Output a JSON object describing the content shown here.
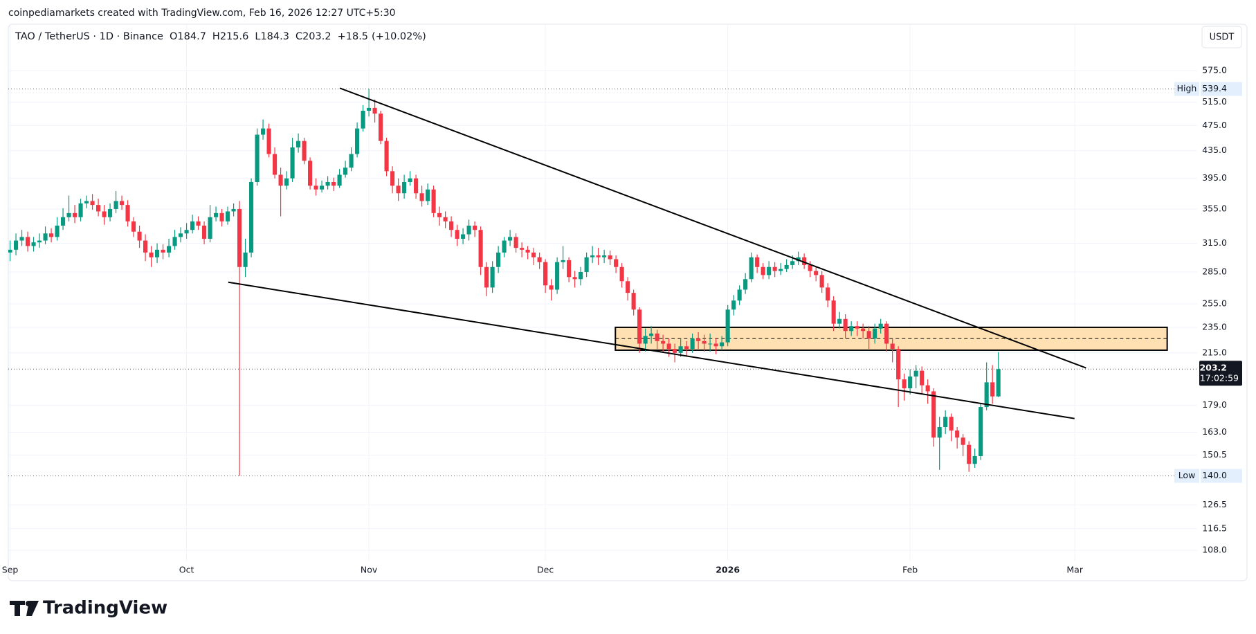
{
  "header": {
    "attribution": "coinpediamarkets created with TradingView.com, Feb 16, 2026 12:27 UTC+5:30"
  },
  "chart_data": {
    "type": "candlestick",
    "title": "TAO / TetherUS · 1D · Binance",
    "ohlc_labels": [
      "O",
      "H",
      "L",
      "C"
    ],
    "change": "+18.5",
    "change_pct": "(+10.02%)",
    "currency": "USDT",
    "open": [
      305,
      308,
      318,
      322,
      312,
      316,
      318,
      326,
      322,
      335,
      345,
      350,
      345,
      362,
      365,
      360,
      352,
      345,
      355,
      365,
      360,
      340,
      328,
      318,
      305,
      300,
      308,
      305,
      312,
      322,
      326,
      330,
      340,
      335,
      320,
      345,
      350,
      340,
      352,
      355,
      290,
      305,
      390,
      460,
      470,
      430,
      400,
      385,
      395,
      440,
      450,
      420,
      385,
      380,
      385,
      390,
      385,
      400,
      410,
      430,
      470,
      500,
      505,
      495,
      450,
      405,
      385,
      375,
      390,
      395,
      375,
      365,
      380,
      350,
      345,
      340,
      330,
      320,
      325,
      335,
      330,
      290,
      270,
      290,
      305,
      318,
      322,
      310,
      308,
      305,
      300,
      295,
      272,
      268,
      295,
      297,
      280,
      278,
      285,
      300,
      302,
      300,
      302,
      298,
      290,
      276,
      265,
      250,
      222,
      228,
      230,
      224,
      222,
      218,
      215,
      220,
      218,
      226,
      224,
      222,
      222,
      220,
      223,
      250,
      258,
      268,
      278,
      300,
      290,
      282,
      290,
      286,
      288,
      292,
      296,
      300,
      292,
      286,
      282,
      270,
      258,
      238,
      242,
      232,
      236,
      234,
      232,
      226,
      234,
      238,
      222,
      218,
      196,
      190,
      198,
      202,
      192,
      188,
      160,
      166,
      172,
      164,
      160,
      156,
      146,
      150,
      178,
      194,
      184.7
    ],
    "high": [
      318,
      326,
      330,
      328,
      322,
      326,
      334,
      332,
      345,
      356,
      372,
      360,
      368,
      372,
      374,
      368,
      360,
      362,
      378,
      372,
      366,
      345,
      335,
      325,
      312,
      315,
      314,
      320,
      330,
      333,
      338,
      348,
      346,
      340,
      360,
      358,
      355,
      358,
      362,
      365,
      320,
      395,
      470,
      485,
      478,
      440,
      410,
      405,
      455,
      462,
      455,
      425,
      395,
      392,
      398,
      396,
      408,
      420,
      440,
      480,
      510,
      539.4,
      520,
      500,
      455,
      412,
      395,
      400,
      405,
      400,
      385,
      388,
      385,
      358,
      352,
      346,
      336,
      332,
      342,
      340,
      334,
      295,
      296,
      312,
      322,
      330,
      326,
      316,
      312,
      310,
      305,
      298,
      278,
      300,
      312,
      300,
      286,
      290,
      305,
      312,
      310,
      308,
      307,
      302,
      294,
      280,
      268,
      252,
      234,
      236,
      233,
      229,
      226,
      222,
      226,
      224,
      230,
      231,
      229,
      230,
      226,
      228,
      254,
      263,
      272,
      284,
      305,
      303,
      294,
      296,
      295,
      294,
      298,
      302,
      306,
      304,
      296,
      290,
      286,
      274,
      262,
      248,
      246,
      240,
      240,
      238,
      236,
      238,
      242,
      240,
      226,
      220,
      200,
      203,
      206,
      205,
      196,
      190,
      172,
      176,
      174,
      166,
      162,
      158,
      154,
      180,
      208,
      206,
      215.6
    ],
    "low": [
      296,
      302,
      312,
      306,
      306,
      310,
      314,
      316,
      318,
      330,
      340,
      338,
      340,
      356,
      354,
      346,
      336,
      340,
      350,
      354,
      334,
      322,
      310,
      296,
      290,
      294,
      298,
      300,
      308,
      316,
      320,
      326,
      330,
      314,
      316,
      340,
      334,
      336,
      346,
      140,
      280,
      300,
      385,
      452,
      425,
      395,
      346,
      380,
      390,
      432,
      415,
      380,
      372,
      376,
      380,
      378,
      382,
      396,
      405,
      425,
      465,
      490,
      480,
      445,
      398,
      375,
      365,
      368,
      385,
      368,
      358,
      360,
      345,
      335,
      332,
      322,
      312,
      314,
      318,
      322,
      282,
      262,
      265,
      284,
      300,
      312,
      305,
      300,
      298,
      292,
      288,
      265,
      258,
      264,
      288,
      275,
      270,
      272,
      280,
      294,
      292,
      294,
      292,
      284,
      270,
      258,
      245,
      215,
      216,
      222,
      218,
      215,
      212,
      208,
      212,
      213,
      215,
      218,
      216,
      216,
      214,
      217,
      220,
      245,
      254,
      264,
      275,
      284,
      278,
      278,
      280,
      282,
      285,
      288,
      292,
      288,
      280,
      276,
      265,
      252,
      232,
      234,
      226,
      228,
      228,
      226,
      218,
      222,
      230,
      216,
      208,
      178,
      182,
      186,
      190,
      186,
      180,
      155,
      143,
      162,
      158,
      154,
      150,
      142,
      144,
      148,
      176,
      180,
      184.3
    ],
    "close": [
      308,
      318,
      322,
      312,
      316,
      318,
      326,
      322,
      335,
      345,
      350,
      345,
      362,
      365,
      360,
      352,
      345,
      355,
      365,
      360,
      340,
      328,
      318,
      305,
      300,
      308,
      305,
      312,
      322,
      326,
      330,
      340,
      335,
      320,
      345,
      350,
      340,
      352,
      355,
      290,
      305,
      390,
      460,
      470,
      430,
      400,
      385,
      395,
      440,
      450,
      420,
      385,
      380,
      385,
      390,
      385,
      400,
      410,
      430,
      470,
      500,
      505,
      495,
      450,
      405,
      385,
      375,
      390,
      395,
      375,
      365,
      380,
      350,
      345,
      340,
      330,
      320,
      325,
      335,
      330,
      290,
      270,
      290,
      305,
      318,
      322,
      310,
      308,
      305,
      300,
      295,
      272,
      268,
      295,
      297,
      280,
      278,
      285,
      300,
      302,
      300,
      302,
      298,
      290,
      276,
      265,
      250,
      222,
      228,
      230,
      224,
      222,
      218,
      215,
      220,
      218,
      226,
      224,
      222,
      222,
      220,
      223,
      250,
      258,
      268,
      278,
      300,
      290,
      282,
      290,
      286,
      288,
      292,
      296,
      300,
      292,
      286,
      282,
      270,
      258,
      238,
      242,
      232,
      236,
      234,
      232,
      226,
      234,
      238,
      222,
      218,
      196,
      190,
      198,
      202,
      192,
      188,
      160,
      166,
      172,
      164,
      160,
      156,
      146,
      150,
      178,
      194,
      184.7,
      203.2
    ],
    "up_color": "#089981",
    "down_color": "#f23645",
    "xlim": [
      -0.3,
      201.8
    ],
    "xticks": [
      {
        "value": 0,
        "label": "Sep"
      },
      {
        "value": 30,
        "label": "Oct"
      },
      {
        "value": 61,
        "label": "Nov"
      },
      {
        "value": 91,
        "label": "Dec"
      },
      {
        "value": 122,
        "label": "2026"
      },
      {
        "value": 153,
        "label": "Feb"
      },
      {
        "value": 181,
        "label": "Mar"
      }
    ],
    "ylim": [
      104.2,
      676
    ],
    "log_scale": true,
    "grid": true,
    "yticks": [
      {
        "value": 575,
        "label": "575.0"
      },
      {
        "value": 515,
        "label": "515.0"
      },
      {
        "value": 475,
        "label": "475.0"
      },
      {
        "value": 435,
        "label": "435.0"
      },
      {
        "value": 395,
        "label": "395.0"
      },
      {
        "value": 355,
        "label": "355.0"
      },
      {
        "value": 315,
        "label": "315.0"
      },
      {
        "value": 285,
        "label": "285.0"
      },
      {
        "value": 255,
        "label": "255.0"
      },
      {
        "value": 235,
        "label": "235.0"
      },
      {
        "value": 215,
        "label": "215.0"
      },
      {
        "value": 179,
        "label": "179.0"
      },
      {
        "value": 163,
        "label": "163.0"
      },
      {
        "value": 150.5,
        "label": "150.5"
      },
      {
        "value": 126.5,
        "label": "126.5"
      },
      {
        "value": 116.5,
        "label": "116.5"
      },
      {
        "value": 108,
        "label": "108.0"
      }
    ],
    "markers": {
      "high_label": "High",
      "low_label": "Low",
      "low_value_label": "140.0",
      "countdown": "17:02:59"
    },
    "drawings": {
      "trendlines": [
        {
          "x": [
            56.05,
            182.9
          ],
          "y": [
            541,
            204
          ]
        },
        {
          "x": [
            37.1,
            180.95
          ],
          "y": [
            275,
            171
          ]
        }
      ],
      "zone": {
        "x": [
          102.9,
          196.7
        ],
        "y": [
          217,
          235
        ],
        "mid": 226,
        "color": "#ffe0b2"
      }
    }
  },
  "footer": {
    "logo": "TradingView"
  }
}
